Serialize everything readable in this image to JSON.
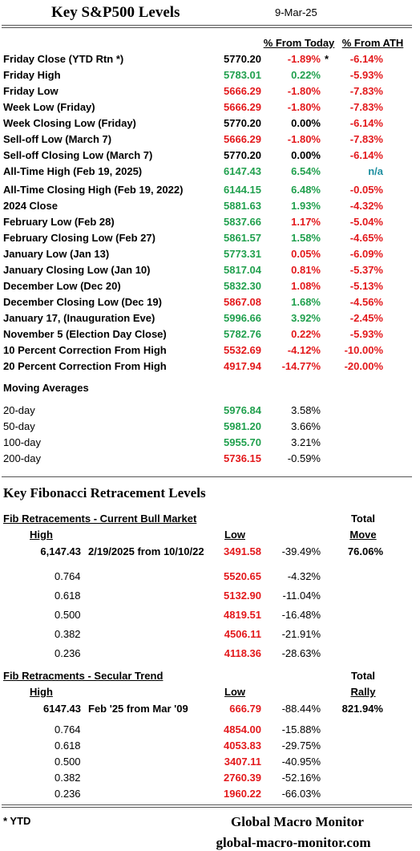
{
  "header": {
    "title": "Key S&P500 Levels",
    "date": "9-Mar-25"
  },
  "levels": {
    "columns": [
      "% From Today",
      "% From ATH"
    ],
    "rows": [
      [
        "Friday Close (YTD Rtn *)",
        "5770.20",
        "-1.89%",
        "-6.14%",
        "*"
      ],
      [
        "Friday High",
        "5783.01",
        "0.22%",
        "-5.93%"
      ],
      [
        "Friday Low",
        "5666.29",
        "-1.80%",
        "-7.83%"
      ],
      [
        "Week Low (Friday)",
        "5666.29",
        "-1.80%",
        "-7.83%"
      ],
      [
        "Week Closing Low (Friday)",
        "5770.20",
        "0.00%",
        "-6.14%"
      ],
      [
        "Sell-off Low (March 7)",
        "5666.29",
        "-1.80%",
        "-7.83%"
      ],
      [
        "Sell-off Closing Low (March 7)",
        "5770.20",
        "0.00%",
        "-6.14%"
      ],
      [
        "All-Time High (Feb 19, 2025)",
        "6147.43",
        "6.54%",
        "n/a"
      ],
      [
        "All-Time Closing High (Feb 19, 2022)",
        "6144.15",
        "6.48%",
        "-0.05%"
      ],
      [
        "2024 Close",
        "5881.63",
        "1.93%",
        "-4.32%"
      ],
      [
        "February Low (Feb 28)",
        "5837.66",
        "1.17%",
        "-5.04%"
      ],
      [
        "February Closing Low (Feb 27)",
        "5861.57",
        "1.58%",
        "-4.65%"
      ],
      [
        "January Low (Jan 13)",
        "5773.31",
        "0.05%",
        "-6.09%"
      ],
      [
        "January Closing Low (Jan 10)",
        "5817.04",
        "0.81%",
        "-5.37%"
      ],
      [
        "December Low (Dec 20)",
        "5832.30",
        "1.08%",
        "-5.13%"
      ],
      [
        "December Closing Low (Dec 19)",
        "5867.08",
        "1.68%",
        "-4.56%"
      ],
      [
        "January 17, (Inauguration Eve)",
        "5996.66",
        "3.92%",
        "-2.45%"
      ],
      [
        "November 5 (Election Day Close)",
        "5782.76",
        "0.22%",
        "-5.93%"
      ],
      [
        "10 Percent Correction From High",
        "5532.69",
        "-4.12%",
        "-10.00%"
      ],
      [
        "20 Percent Correction From High",
        "4917.94",
        "-14.77%",
        "-20.00%"
      ]
    ],
    "colors": [
      [
        "#000000",
        "#e3191c",
        "#e3191c"
      ],
      [
        "#21a04e",
        "#21a04e",
        "#e3191c"
      ],
      [
        "#e3191c",
        "#e3191c",
        "#e3191c"
      ],
      [
        "#e3191c",
        "#e3191c",
        "#e3191c"
      ],
      [
        "#000000",
        "#000000",
        "#e3191c"
      ],
      [
        "#e3191c",
        "#e3191c",
        "#e3191c"
      ],
      [
        "#000000",
        "#000000",
        "#e3191c"
      ],
      [
        "#21a04e",
        "#21a04e",
        "#1f8fa0"
      ],
      [
        "#21a04e",
        "#21a04e",
        "#e3191c"
      ],
      [
        "#21a04e",
        "#21a04e",
        "#e3191c"
      ],
      [
        "#21a04e",
        "#e3191c",
        "#e3191c"
      ],
      [
        "#21a04e",
        "#21a04e",
        "#e3191c"
      ],
      [
        "#21a04e",
        "#e3191c",
        "#e3191c"
      ],
      [
        "#21a04e",
        "#e3191c",
        "#e3191c"
      ],
      [
        "#21a04e",
        "#e3191c",
        "#e3191c"
      ],
      [
        "#e3191c",
        "#21a04e",
        "#e3191c"
      ],
      [
        "#21a04e",
        "#21a04e",
        "#e3191c"
      ],
      [
        "#21a04e",
        "#e3191c",
        "#e3191c"
      ],
      [
        "#e3191c",
        "#e3191c",
        "#e3191c"
      ],
      [
        "#e3191c",
        "#e3191c",
        "#e3191c"
      ]
    ]
  },
  "moving_averages": {
    "title": "Moving Averages",
    "rows": [
      [
        "20-day",
        "5976.84",
        "3.58%"
      ],
      [
        "50-day",
        "5981.20",
        "3.66%"
      ],
      [
        "100-day",
        "5955.70",
        "3.21%"
      ],
      [
        "200-day",
        "5736.15",
        "-0.59%"
      ]
    ],
    "colors": [
      "#21a04e",
      "#21a04e",
      "#21a04e",
      "#e3191c"
    ]
  },
  "fibonacci": {
    "title": "Key Fibonacci Retracement Levels",
    "sections": [
      {
        "title": "Fib Retracements - Current Bull Market",
        "total": "Total",
        "total_label": "Move",
        "high": "High",
        "low": "Low",
        "summary": [
          "6,147.43",
          "2/19/2025 from 10/10/22",
          "3491.58",
          "-39.49%",
          "76.06%"
        ],
        "rows": [
          [
            "0.764",
            "5520.65",
            "-4.32%"
          ],
          [
            "0.618",
            "5132.90",
            "-11.04%"
          ],
          [
            "0.500",
            "4819.51",
            "-16.48%"
          ],
          [
            "0.382",
            "4506.11",
            "-21.91%"
          ],
          [
            "0.236",
            "4118.36",
            "-28.63%"
          ]
        ]
      },
      {
        "title": "Fib Retracments - Secular Trend",
        "total": "Total",
        "total_label": "Rally",
        "high": "High",
        "low": "Low",
        "summary": [
          "6147.43",
          "Feb '25 from Mar '09",
          "666.79",
          "-88.44%",
          "821.94%"
        ],
        "rows": [
          [
            "0.764",
            "4854.00",
            "-15.88%"
          ],
          [
            "0.618",
            "4053.83",
            "-29.75%"
          ],
          [
            "0.500",
            "3407.11",
            "-40.95%"
          ],
          [
            "0.382",
            "2760.39",
            "-52.16%"
          ],
          [
            "0.236",
            "1960.22",
            "-66.03%"
          ]
        ]
      }
    ]
  },
  "footer": {
    "note": "* YTD",
    "brand": "Global Macro Monitor",
    "url": "global-macro-monitor.com"
  }
}
